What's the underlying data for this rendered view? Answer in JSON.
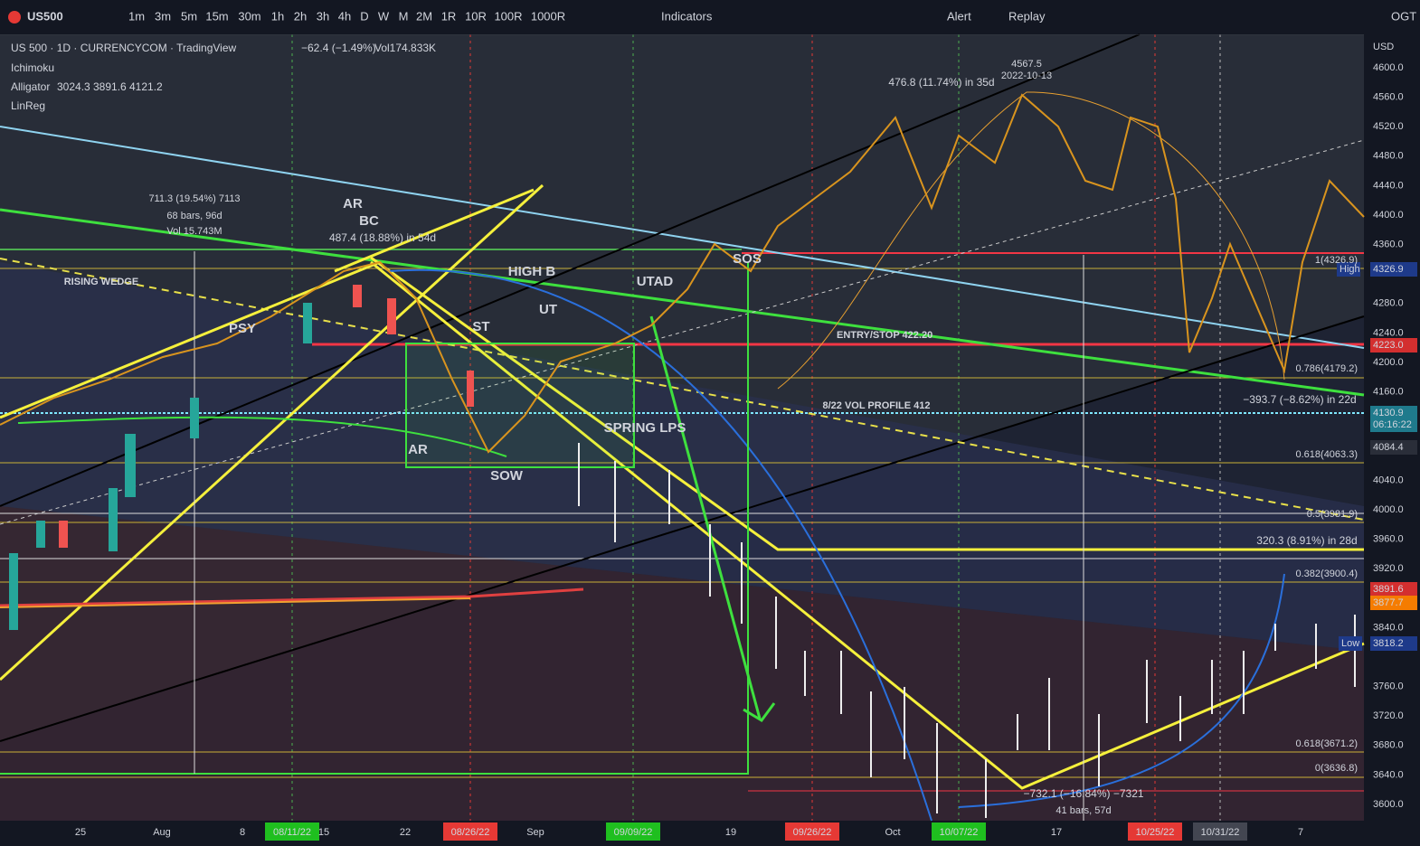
{
  "toolbar": {
    "symbol": "US500",
    "intervals": [
      "1m",
      "3m",
      "5m",
      "15m",
      "30m",
      "1h",
      "2h",
      "3h",
      "4h",
      "D",
      "W",
      "M",
      "2M",
      "1R",
      "10R",
      "100R",
      "1000R"
    ],
    "indicators": "Indicators",
    "alert": "Alert",
    "replay": "Replay",
    "ogt": "OGT"
  },
  "legend": {
    "title": "US 500 · 1D · CURRENCYCOM · TradingView",
    "change": "−62.4 (−1.49%)",
    "volume": "Vol174.833K",
    "ichimoku": "Ichimoku",
    "alligator": {
      "name": "Alligator",
      "values": [
        "3024.3",
        "3891.6",
        "4121.2"
      ]
    },
    "linreg": "LinReg"
  },
  "price_axis": {
    "currency": "USD",
    "ticks": [
      "4600.0",
      "4560.0",
      "4520.0",
      "4480.0",
      "4440.0",
      "4400.0",
      "4360.0",
      "4280.0",
      "4240.0",
      "4200.0",
      "4160.0",
      "4040.0",
      "4000.0",
      "3960.0",
      "3920.0",
      "3840.0",
      "3760.0",
      "3720.0",
      "3680.0",
      "3640.0",
      "3600.0"
    ],
    "badges": [
      "4326.9",
      "High",
      "4223.0",
      "4130.9",
      "06:16:22",
      "4084.4",
      "3891.6",
      "3877.7",
      "3818.2",
      "Low"
    ]
  },
  "time_axis": {
    "labels": [
      "25",
      "Aug",
      "8",
      "08/11/22",
      "15",
      "22",
      "08/26/22",
      "Sep",
      "09/09/22",
      "19",
      "09/26/22",
      "Oct",
      "10/07/22",
      "17",
      "10/25/22",
      "10/31/22",
      "7"
    ]
  },
  "annotations": [
    "AR",
    "BC",
    "PSY",
    "RISING WEDGE",
    "ST",
    "UT",
    "UTAD",
    "HIGH B",
    "SOS",
    "ENTRY/STOP 422.20",
    "8/22 VOL PROFILE 412",
    "SPRING LPS",
    "SOW",
    "AR",
    "711.3 (19.54%) 7113",
    "68 bars, 96d",
    "Vol 15.743M",
    "487.4 (18.88%) in 54d",
    "476.8 (11.74%) in 35d",
    "4567.5",
    "2022-10-13",
    "−393.7 (−8.62%) in 22d",
    "320.3 (8.91%) in 28d",
    "−732.1 (−16.84%) −7321",
    "41 bars, 57d",
    "1(4326.9)",
    "0.786(4179.2)",
    "0.618(4063.3)",
    "0.5(3981.9)",
    "0.382(3900.4)",
    "0.618(3671.2)",
    "0(3636.8)"
  ]
}
